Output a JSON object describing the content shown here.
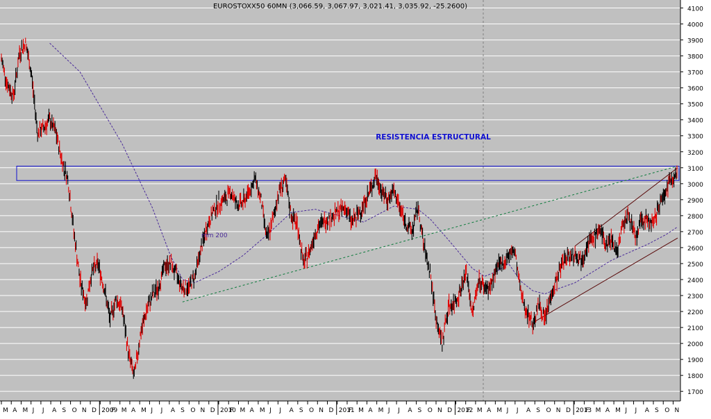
{
  "chart_data": {
    "type": "line",
    "title": "EUROSTOXX50 60MN (3,066.59, 3,067.97, 3,021.41, 3,035.92, -25.2600)",
    "colors": {
      "bars_up": "#000000",
      "bars_down": "#e00000",
      "background": "#c0c0c0",
      "grid": "#ffffff",
      "resistance": "#1010d0",
      "ma": "#4a2a9a",
      "trend": "#0a7a3a",
      "channel": "#5a0a0a"
    },
    "y_ticks": [
      1700,
      1800,
      1900,
      2000,
      2100,
      2200,
      2300,
      2400,
      2500,
      2600,
      2700,
      2800,
      2900,
      3000,
      3100,
      3200,
      3300,
      3400,
      3500,
      3600,
      3700,
      3800,
      3900,
      4000,
      4100
    ],
    "ylim": [
      1640,
      4150
    ],
    "x_ticks": [
      "M",
      "A",
      "M",
      "J",
      "J",
      "A",
      "S",
      "O",
      "N",
      "D",
      "2009",
      "F",
      "M",
      "A",
      "M",
      "J",
      "J",
      "A",
      "S",
      "O",
      "N",
      "D",
      "2010",
      "F",
      "M",
      "A",
      "M",
      "J",
      "J",
      "A",
      "S",
      "O",
      "N",
      "D",
      "2011",
      "F",
      "M",
      "A",
      "M",
      "J",
      "J",
      "A",
      "S",
      "O",
      "N",
      "D",
      "2012",
      "F",
      "M",
      "A",
      "M",
      "J",
      "J",
      "A",
      "S",
      "O",
      "N",
      "D",
      "2013",
      "F",
      "M",
      "A",
      "M",
      "J",
      "J",
      "A",
      "S",
      "O",
      "N"
    ],
    "price_series": {
      "name": "EUROSTOXX50",
      "points": [
        [
          0,
          3780
        ],
        [
          1,
          3620
        ],
        [
          2,
          3550
        ],
        [
          3,
          3820
        ],
        [
          4,
          3880
        ],
        [
          5,
          3680
        ],
        [
          6,
          3320
        ],
        [
          7,
          3350
        ],
        [
          8,
          3400
        ],
        [
          9,
          3320
        ],
        [
          10,
          3150
        ],
        [
          11,
          3030
        ],
        [
          12,
          2700
        ],
        [
          13,
          2400
        ],
        [
          14,
          2250
        ],
        [
          15,
          2450
        ],
        [
          16,
          2500
        ],
        [
          17,
          2350
        ],
        [
          18,
          2150
        ],
        [
          19,
          2280
        ],
        [
          20,
          2220
        ],
        [
          21,
          1950
        ],
        [
          22,
          1790
        ],
        [
          23,
          2050
        ],
        [
          24,
          2200
        ],
        [
          25,
          2300
        ],
        [
          26,
          2350
        ],
        [
          27,
          2480
        ],
        [
          28,
          2500
        ],
        [
          29,
          2430
        ],
        [
          30,
          2350
        ],
        [
          31,
          2350
        ],
        [
          32,
          2420
        ],
        [
          33,
          2580
        ],
        [
          34,
          2720
        ],
        [
          35,
          2820
        ],
        [
          36,
          2880
        ],
        [
          37,
          2900
        ],
        [
          38,
          2950
        ],
        [
          39,
          2870
        ],
        [
          40,
          2880
        ],
        [
          41,
          2950
        ],
        [
          42,
          3030
        ],
        [
          43,
          2900
        ],
        [
          44,
          2650
        ],
        [
          45,
          2780
        ],
        [
          46,
          2960
        ],
        [
          47,
          3020
        ],
        [
          48,
          2800
        ],
        [
          49,
          2750
        ],
        [
          50,
          2500
        ],
        [
          51,
          2570
        ],
        [
          52,
          2700
        ],
        [
          53,
          2750
        ],
        [
          54,
          2780
        ],
        [
          55,
          2800
        ],
        [
          56,
          2830
        ],
        [
          57,
          2850
        ],
        [
          58,
          2760
        ],
        [
          59,
          2800
        ],
        [
          60,
          2870
        ],
        [
          61,
          2950
        ],
        [
          62,
          3050
        ],
        [
          63,
          2950
        ],
        [
          64,
          2900
        ],
        [
          65,
          2950
        ],
        [
          66,
          2850
        ],
        [
          67,
          2750
        ],
        [
          68,
          2700
        ],
        [
          69,
          2850
        ],
        [
          70,
          2600
        ],
        [
          71,
          2450
        ],
        [
          72,
          2150
        ],
        [
          73,
          2000
        ],
        [
          74,
          2230
        ],
        [
          75,
          2250
        ],
        [
          76,
          2330
        ],
        [
          77,
          2450
        ],
        [
          78,
          2180
        ],
        [
          79,
          2400
        ],
        [
          80,
          2350
        ],
        [
          81,
          2350
        ],
        [
          82,
          2470
        ],
        [
          83,
          2500
        ],
        [
          84,
          2550
        ],
        [
          85,
          2580
        ],
        [
          86,
          2320
        ],
        [
          87,
          2200
        ],
        [
          88,
          2120
        ],
        [
          89,
          2250
        ],
        [
          90,
          2150
        ],
        [
          91,
          2300
        ],
        [
          92,
          2400
        ],
        [
          93,
          2520
        ],
        [
          94,
          2550
        ],
        [
          95,
          2560
        ],
        [
          96,
          2520
        ],
        [
          97,
          2620
        ],
        [
          98,
          2650
        ],
        [
          99,
          2720
        ],
        [
          100,
          2620
        ],
        [
          101,
          2650
        ],
        [
          102,
          2580
        ],
        [
          103,
          2760
        ],
        [
          104,
          2800
        ],
        [
          105,
          2650
        ],
        [
          106,
          2770
        ],
        [
          107,
          2780
        ],
        [
          108,
          2740
        ],
        [
          109,
          2880
        ],
        [
          110,
          2950
        ],
        [
          111,
          3040
        ],
        [
          112,
          3070
        ]
      ]
    },
    "mm200_series": {
      "name": "mm 200",
      "points": [
        [
          8,
          3880
        ],
        [
          13,
          3700
        ],
        [
          20,
          3250
        ],
        [
          25,
          2850
        ],
        [
          28,
          2550
        ],
        [
          30,
          2400
        ],
        [
          32,
          2380
        ],
        [
          36,
          2450
        ],
        [
          40,
          2550
        ],
        [
          44,
          2680
        ],
        [
          48,
          2820
        ],
        [
          52,
          2840
        ],
        [
          56,
          2800
        ],
        [
          60,
          2760
        ],
        [
          62,
          2800
        ],
        [
          65,
          2860
        ],
        [
          69,
          2840
        ],
        [
          71,
          2780
        ],
        [
          74,
          2650
        ],
        [
          76,
          2560
        ],
        [
          78,
          2470
        ],
        [
          80,
          2420
        ],
        [
          82,
          2450
        ],
        [
          84,
          2500
        ],
        [
          86,
          2390
        ],
        [
          88,
          2330
        ],
        [
          90,
          2310
        ],
        [
          92,
          2340
        ],
        [
          95,
          2380
        ],
        [
          98,
          2450
        ],
        [
          101,
          2520
        ],
        [
          104,
          2570
        ],
        [
          107,
          2620
        ],
        [
          110,
          2680
        ],
        [
          112,
          2730
        ]
      ]
    },
    "resistance_zone": {
      "low": 3020,
      "high": 3110,
      "label": "RESISTENCIA ESTRUCTURAL"
    },
    "trendline_green": {
      "from": [
        30,
        2260
      ],
      "to": [
        112,
        3110
      ]
    },
    "channel_upper": {
      "from": [
        95,
        2610
      ],
      "to": [
        112,
        3100
      ]
    },
    "channel_lower": {
      "from": [
        88,
        2130
      ],
      "to": [
        112,
        2660
      ]
    },
    "mm_label": "mm 200",
    "x_count": 113
  }
}
